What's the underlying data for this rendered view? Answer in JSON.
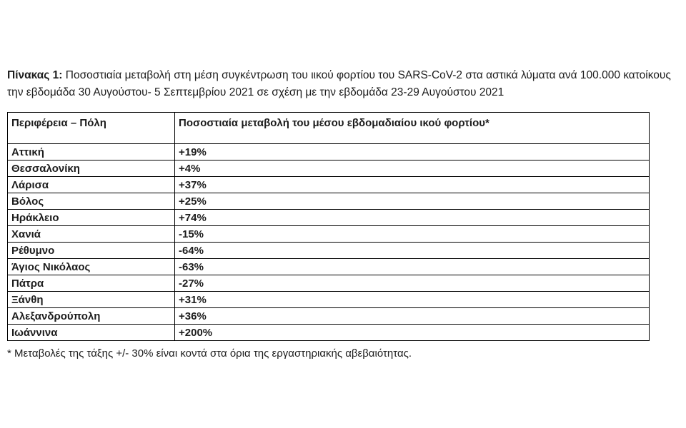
{
  "document": {
    "title_label": "Πίνακας 1:",
    "title_text": " Ποσοστιαία μεταβολή στη μέση συγκέντρωση του ιικού φορτίου του SARS-CoV-2 στα αστικά λύματα ανά 100.000 κατοίκους την εβδομάδα 30 Αυγούστου- 5 Σεπτεμβρίου 2021 σε σχέση με την εβδομάδα 23-29 Αυγούστου 2021",
    "footnote": "* Μεταβολές της τάξης +/- 30% είναι κοντά στα όρια της εργαστηριακής αβεβαιότητας."
  },
  "table": {
    "headers": {
      "city": "Περιφέρεια – Πόλη",
      "change": "Ποσοστιαία μεταβολή του μέσου εβδομαδιαίου ικού φορτίου*"
    },
    "rows": [
      {
        "city": "Αττική",
        "change": "+19%"
      },
      {
        "city": "Θεσσαλονίκη",
        "change": "+4%"
      },
      {
        "city": "Λάρισα",
        "change": "+37%"
      },
      {
        "city": "Βόλος",
        "change": "+25%"
      },
      {
        "city": "Ηράκλειο",
        "change": "+74%"
      },
      {
        "city": "Χανιά",
        "change": "-15%"
      },
      {
        "city": "Ρέθυμνο",
        "change": "-64%"
      },
      {
        "city": "Άγιος Νικόλαος",
        "change": "-63%"
      },
      {
        "city": "Πάτρα",
        "change": "-27%"
      },
      {
        "city": "Ξάνθη",
        "change": "+31%"
      },
      {
        "city": "Αλεξανδρούπολη",
        "change": "+36%"
      },
      {
        "city": "Ιωάννινα",
        "change": "+200%"
      }
    ]
  }
}
